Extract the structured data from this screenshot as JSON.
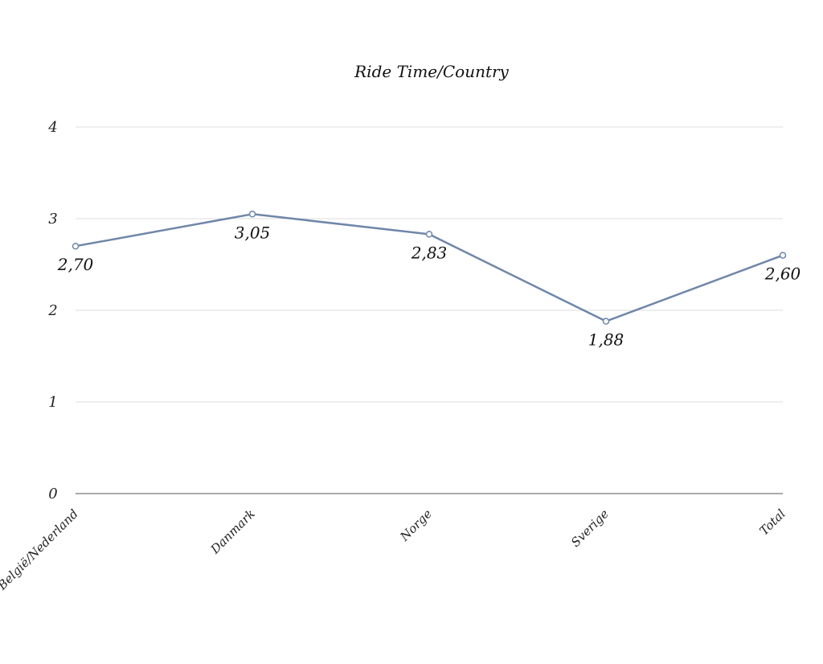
{
  "chart_data": {
    "type": "line",
    "title": "Ride Time/Country",
    "categories": [
      "België/Nederland",
      "Danmark",
      "Norge",
      "Sverige",
      "Total"
    ],
    "series": [
      {
        "values": [
          2.7,
          3.05,
          2.83,
          1.88,
          2.6
        ]
      }
    ],
    "data_labels": [
      "2,70",
      "3,05",
      "2,83",
      "1,88",
      "2,60"
    ],
    "y_ticks": [
      "0",
      "1",
      "2",
      "3",
      "4"
    ],
    "ylim": [
      0,
      4
    ],
    "grid": true,
    "legend": "none",
    "colors": {
      "line": "#6f86a8",
      "marker_fill": "#ffffff",
      "grid": "#dcdcdc",
      "axis": "#555555"
    }
  }
}
